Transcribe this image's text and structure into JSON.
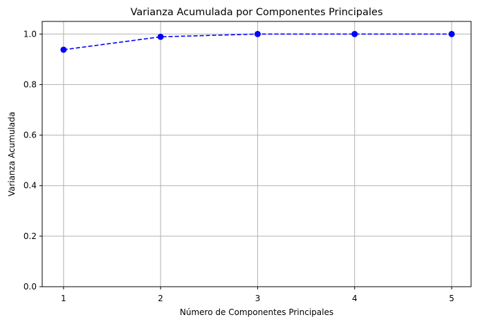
{
  "chart_data": {
    "type": "line",
    "title": "Varianza Acumulada por Componentes Principales",
    "xlabel": "Número de Componentes Principales",
    "ylabel": "Varianza Acumulada",
    "x": [
      1,
      2,
      3,
      4,
      5
    ],
    "x_ticks": [
      "1",
      "2",
      "3",
      "4",
      "5"
    ],
    "y_ticks": [
      "0.0",
      "0.2",
      "0.4",
      "0.6",
      "0.8",
      "1.0"
    ],
    "xlim": [
      0.78,
      5.2
    ],
    "ylim": [
      0,
      1.05
    ],
    "grid": true,
    "series": [
      {
        "values": [
          0.938,
          0.989,
          1.0,
          1.0,
          1.0
        ],
        "color": "#0000ff",
        "line_style": "dashed",
        "marker": "circle"
      }
    ]
  }
}
